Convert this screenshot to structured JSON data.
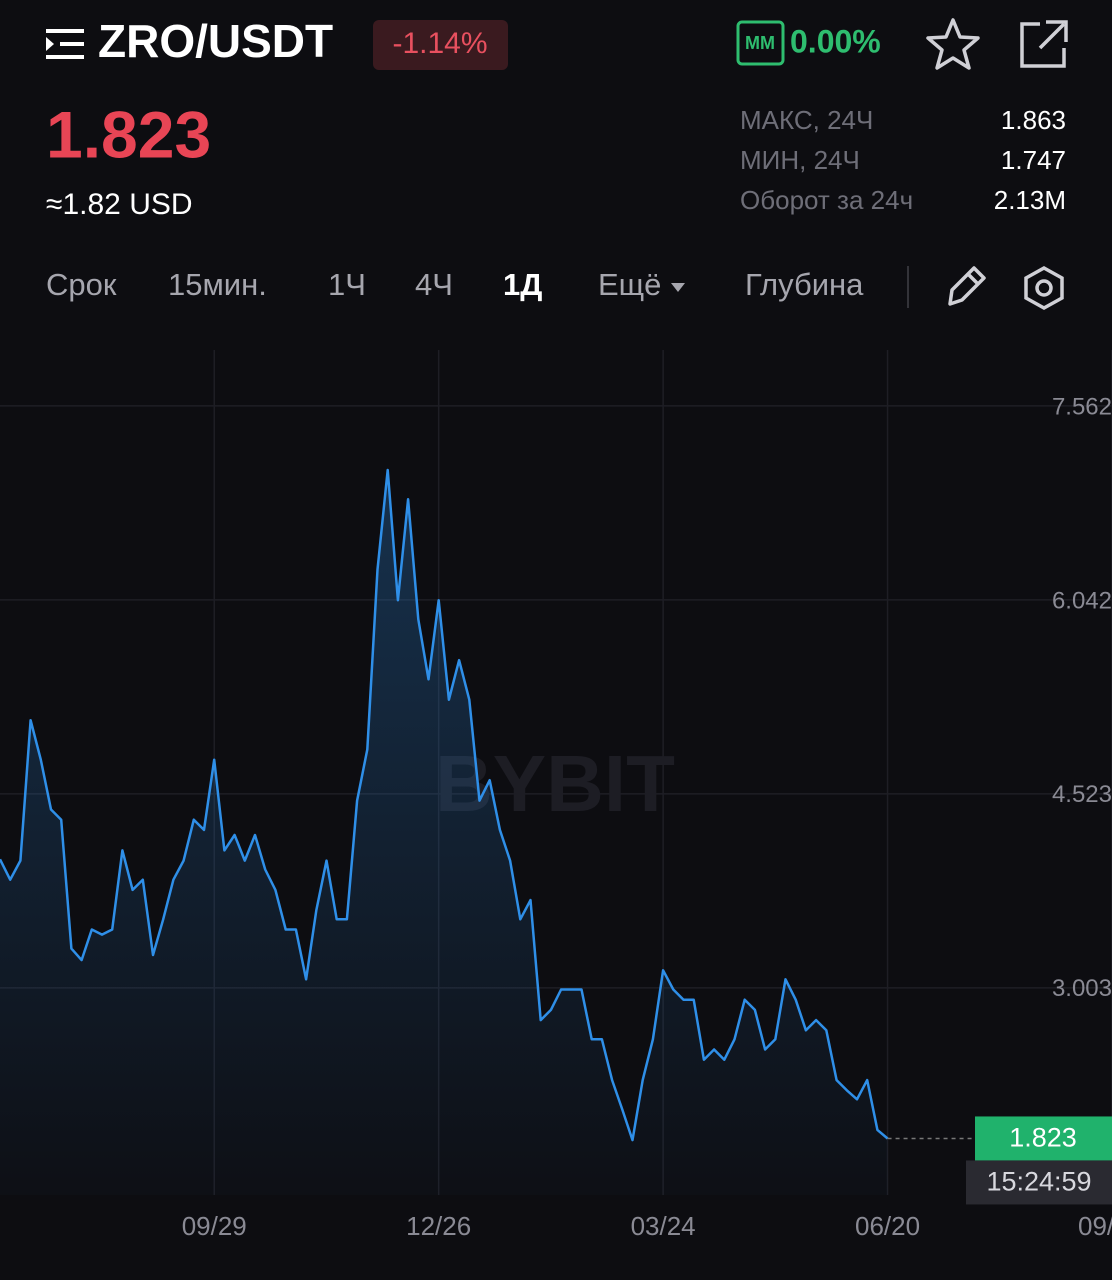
{
  "header": {
    "pair": "ZRO/USDT",
    "change": "-1.14%",
    "mm_label": "MM",
    "mm_value": "0.00%"
  },
  "price": {
    "last": "1.823",
    "usd": "≈1.82 USD"
  },
  "stats": [
    {
      "label": "МАКС, 24Ч",
      "value": "1.863"
    },
    {
      "label": "МИН, 24Ч",
      "value": "1.747"
    },
    {
      "label": "Оборот за 24ч",
      "value": "2.13M"
    }
  ],
  "tabs": [
    "Срок",
    "15мин.",
    "1Ч",
    "4Ч",
    "1Д",
    "Ещё",
    "Глубина"
  ],
  "chart_data": {
    "type": "line",
    "color": "#2f8fe8",
    "watermark": "BYBIT",
    "countdown": "15:24:59",
    "values": [
      4.01,
      3.85,
      4.0,
      5.1,
      4.79,
      4.4,
      4.32,
      3.31,
      3.22,
      3.46,
      3.42,
      3.46,
      4.08,
      3.77,
      3.85,
      3.26,
      3.54,
      3.85,
      4.0,
      4.32,
      4.24,
      4.79,
      4.08,
      4.2,
      4.0,
      4.2,
      3.93,
      3.77,
      3.46,
      3.46,
      3.07,
      3.61,
      4.0,
      3.54,
      3.54,
      4.47,
      4.87,
      6.28,
      7.06,
      6.04,
      6.83,
      5.89,
      5.42,
      6.04,
      5.26,
      5.57,
      5.26,
      4.47,
      4.63,
      4.24,
      4.0,
      3.54,
      3.69,
      2.75,
      2.83,
      2.99,
      2.99,
      2.99,
      2.6,
      2.6,
      2.28,
      2.05,
      1.81,
      2.28,
      2.6,
      3.14,
      2.99,
      2.91,
      2.91,
      2.44,
      2.52,
      2.44,
      2.6,
      2.91,
      2.83,
      2.52,
      2.6,
      3.07,
      2.91,
      2.67,
      2.75,
      2.67,
      2.28,
      2.2,
      2.13,
      2.28,
      1.89,
      1.823
    ],
    "xlim": [
      0,
      109
    ],
    "xticks": [
      {
        "value": 21,
        "label": "09/29"
      },
      {
        "value": 43,
        "label": "12/26"
      },
      {
        "value": 65,
        "label": "03/24"
      },
      {
        "value": 87,
        "label": "06/20"
      },
      {
        "value": 109,
        "label": "09/"
      }
    ],
    "ylim": [
      1.38,
      8.0
    ],
    "yticks": [
      3.003,
      4.523,
      6.042,
      7.562
    ],
    "grid": true
  }
}
